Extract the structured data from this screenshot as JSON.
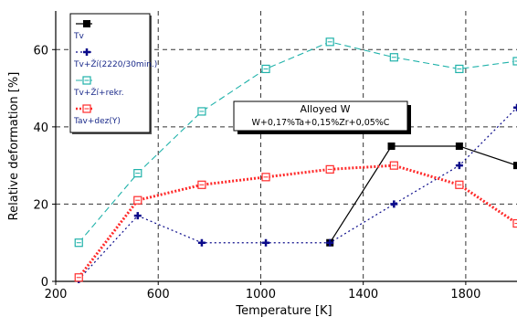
{
  "chart_data": {
    "type": "line",
    "xlabel": "Temperature [K]",
    "ylabel": "Relative deformation [%]",
    "xlim": [
      200,
      2000
    ],
    "ylim": [
      0,
      70
    ],
    "xticks": [
      200,
      600,
      1000,
      1400,
      1800
    ],
    "yticks": [
      0,
      20,
      40,
      60
    ],
    "grid": true,
    "legend_position": "top-left",
    "series": [
      {
        "name": "Tv",
        "color": "#000000",
        "line_style": "solid",
        "marker": "filled-square",
        "x": [
          1270,
          1510,
          1775,
          2000
        ],
        "y": [
          10,
          35,
          35,
          30
        ]
      },
      {
        "name": "Tv+Ží(2220/30min.)",
        "color": "#0a0a8a",
        "line_style": "dotted",
        "marker": "plus",
        "x": [
          290,
          520,
          770,
          1020,
          1270,
          1520,
          1775,
          2000
        ],
        "y": [
          0.5,
          17,
          10,
          10,
          10,
          20,
          30,
          45
        ]
      },
      {
        "name": "Tv+Ží+rekr.",
        "color": "#20b2aa",
        "line_style": "dashed",
        "marker": "open-square",
        "x": [
          290,
          520,
          770,
          1020,
          1270,
          1520,
          1775,
          2000
        ],
        "y": [
          10,
          28,
          44,
          55,
          62,
          58,
          55,
          57
        ]
      },
      {
        "name": "Tav+dez(Y)",
        "color": "#ff2a2a",
        "line_style": "dotted-thick",
        "marker": "open-square",
        "x": [
          290,
          520,
          770,
          1020,
          1270,
          1520,
          1775,
          2000
        ],
        "y": [
          1,
          21,
          25,
          27,
          29,
          30,
          25,
          15
        ]
      }
    ],
    "annotation": {
      "title": "Alloyed W",
      "text": "W+0,17%Ta+0,15%Zr+0,05%C"
    }
  }
}
